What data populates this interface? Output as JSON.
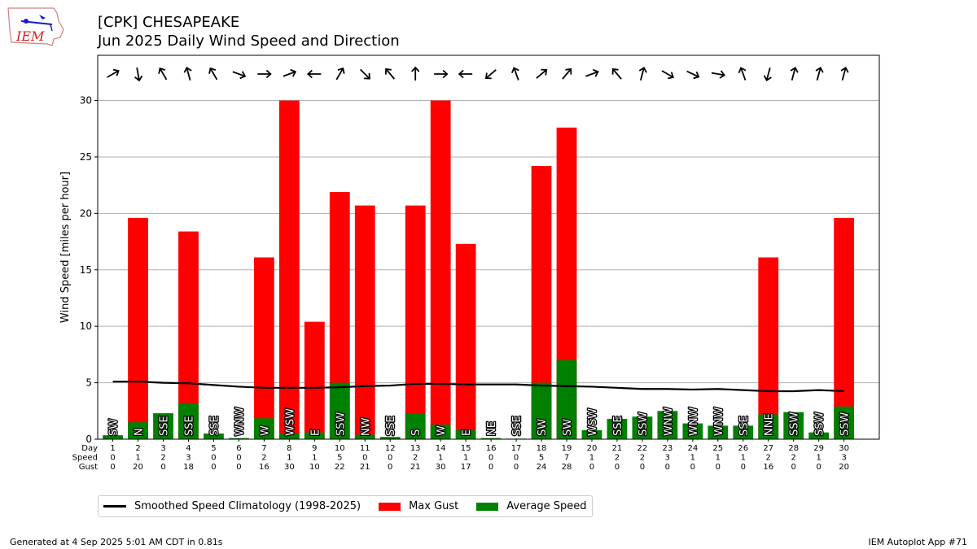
{
  "logo": {
    "text": "IEM"
  },
  "title": {
    "line1": "[CPK] CHESAPEAKE",
    "line2": "Jun 2025 Daily Wind Speed and Direction"
  },
  "footer": {
    "left": "Generated at 4 Sep 2025 5:01 AM CDT in 0.81s",
    "right": "IEM Autoplot App #71"
  },
  "legend": {
    "climatology": "Smoothed Speed Climatology (1998-2025)",
    "max_gust": "Max Gust",
    "avg_speed": "Average Speed"
  },
  "colors": {
    "gust": "#ff0000",
    "speed": "#008000",
    "climatology": "#000000",
    "grid": "#b0b0b0"
  },
  "chart_data": {
    "type": "bar",
    "ylabel": "Wind Speed [miles per hour]",
    "ylim": [
      0,
      34
    ],
    "yticks": [
      0,
      5,
      10,
      15,
      20,
      25,
      30
    ],
    "grid": true,
    "row_labels": [
      "Day",
      "Speed",
      "Gust"
    ],
    "days": [
      1,
      2,
      3,
      4,
      5,
      6,
      7,
      8,
      9,
      10,
      11,
      12,
      13,
      14,
      15,
      16,
      17,
      18,
      19,
      20,
      21,
      22,
      23,
      24,
      25,
      26,
      27,
      28,
      29,
      30
    ],
    "speed_labels": [
      0,
      1,
      2,
      3,
      0,
      0,
      2,
      1,
      1,
      5,
      0,
      0,
      2,
      1,
      1,
      0,
      0,
      5,
      7,
      1,
      2,
      2,
      3,
      1,
      1,
      1,
      2,
      2,
      1,
      3
    ],
    "gust_labels": [
      0,
      20,
      0,
      18,
      0,
      0,
      16,
      30,
      10,
      22,
      21,
      0,
      21,
      30,
      17,
      0,
      0,
      24,
      28,
      0,
      0,
      0,
      0,
      0,
      0,
      0,
      16,
      0,
      0,
      20
    ],
    "avg_speed": [
      0.35,
      1.5,
      2.3,
      3.2,
      0.5,
      0.1,
      1.85,
      0.5,
      0.6,
      5.0,
      0.4,
      0.2,
      2.3,
      1.3,
      0.8,
      0.1,
      0.05,
      5.0,
      7.0,
      0.8,
      1.8,
      2.0,
      2.5,
      1.4,
      1.2,
      1.2,
      2.2,
      2.4,
      0.6,
      2.9
    ],
    "max_gust": [
      0,
      19.6,
      0,
      18.4,
      0,
      0,
      16.1,
      30,
      10.4,
      21.9,
      20.7,
      0,
      20.7,
      30,
      17.3,
      0,
      0,
      24.2,
      27.6,
      0,
      0,
      0,
      0,
      0,
      0,
      0,
      16.1,
      0,
      0,
      19.6
    ],
    "directions": [
      "SW",
      "N",
      "SSE",
      "SSE",
      "SSE",
      "WNW",
      "W",
      "WSW",
      "E",
      "SSW",
      "NW",
      "SSE",
      "S",
      "W",
      "E",
      "NE",
      "SSE",
      "SW",
      "SW",
      "WSW",
      "SSE",
      "SSW",
      "WNW",
      "WNW",
      "WNW",
      "SSE",
      "NNE",
      "SSW",
      "SSW",
      "SSW"
    ],
    "arrow_angles": [
      60,
      170,
      330,
      345,
      330,
      110,
      90,
      70,
      270,
      30,
      135,
      320,
      0,
      90,
      270,
      230,
      340,
      50,
      40,
      70,
      320,
      15,
      120,
      115,
      100,
      340,
      195,
      15,
      15,
      15
    ],
    "climatology": [
      5.1,
      5.1,
      5.0,
      4.95,
      4.8,
      4.65,
      4.55,
      4.55,
      4.55,
      4.6,
      4.7,
      4.75,
      4.9,
      4.9,
      4.85,
      4.85,
      4.85,
      4.75,
      4.7,
      4.65,
      4.55,
      4.45,
      4.45,
      4.4,
      4.45,
      4.35,
      4.25,
      4.25,
      4.35,
      4.25
    ]
  }
}
